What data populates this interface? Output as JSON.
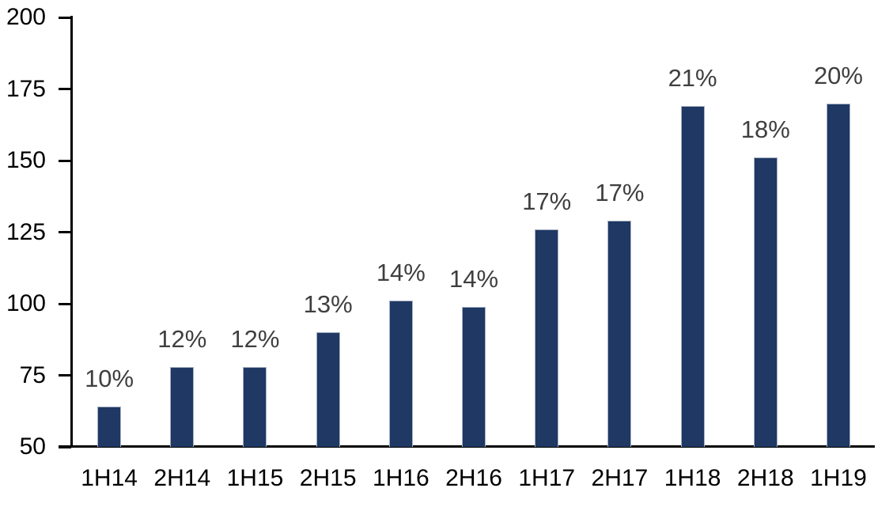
{
  "chart_data": {
    "type": "bar",
    "title": "",
    "xlabel": "",
    "ylabel": "",
    "categories": [
      "1H14",
      "2H14",
      "1H15",
      "2H15",
      "1H16",
      "2H16",
      "1H17",
      "2H17",
      "1H18",
      "2H18",
      "1H19"
    ],
    "values": [
      64,
      78,
      78,
      90,
      101,
      99,
      126,
      129,
      169,
      151,
      170
    ],
    "bar_labels": [
      "10%",
      "12%",
      "12%",
      "13%",
      "14%",
      "14%",
      "17%",
      "17%",
      "21%",
      "18%",
      "20%"
    ],
    "ylim": [
      50,
      200
    ],
    "yticks": [
      50,
      75,
      100,
      125,
      150,
      175,
      200
    ],
    "grid": false,
    "legend_position": "none",
    "colors": {
      "bar_fill": "#1F3864",
      "bar_border": "#A8B2C4",
      "data_label": "#3F3F3F",
      "axis_line": "#000000",
      "axis_text": "#000000",
      "background": "#FFFFFF"
    }
  }
}
